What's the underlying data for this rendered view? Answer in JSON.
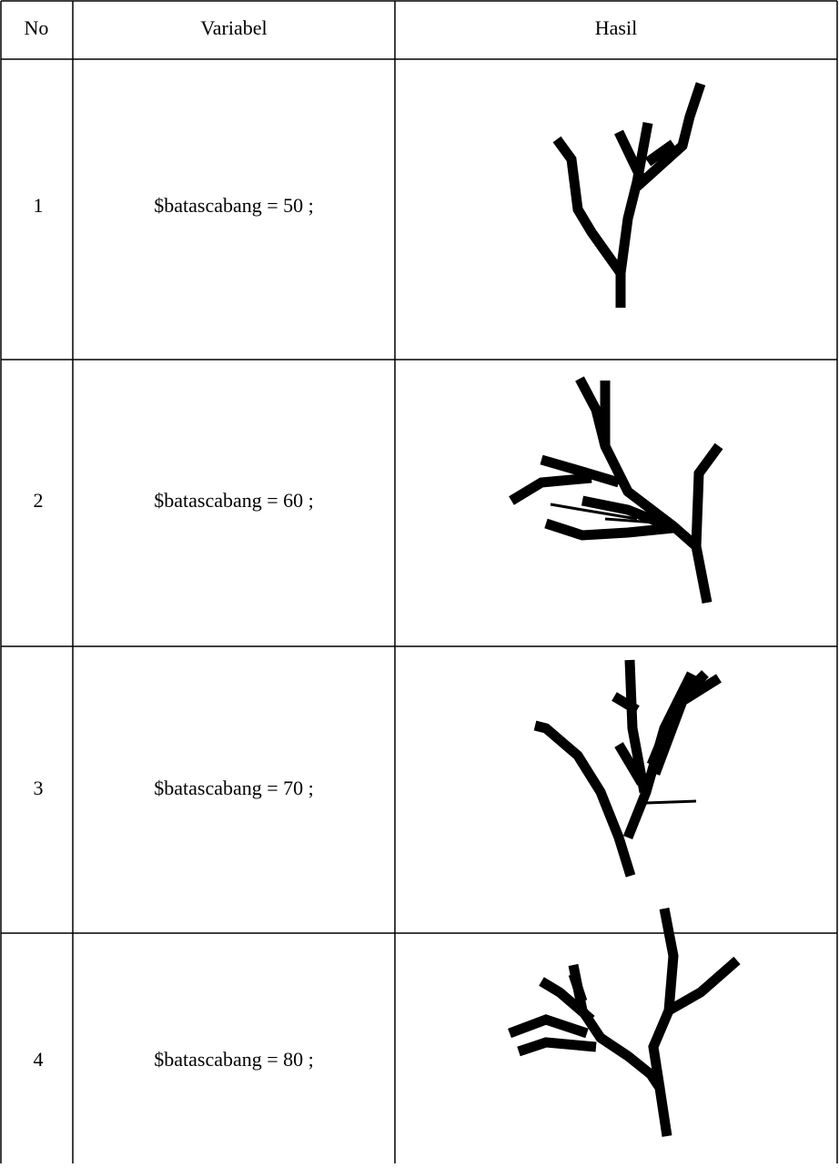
{
  "table": {
    "headers": [
      "No",
      "Variabel",
      "Hasil"
    ],
    "rows": [
      [
        "1",
        "$batascabang = 50 ;"
      ],
      [
        "2",
        "$batascabang = 60 ;"
      ],
      [
        "3",
        "$batascabang = 70 ;"
      ],
      [
        "4",
        "$batascabang = 80 ;"
      ]
    ]
  }
}
